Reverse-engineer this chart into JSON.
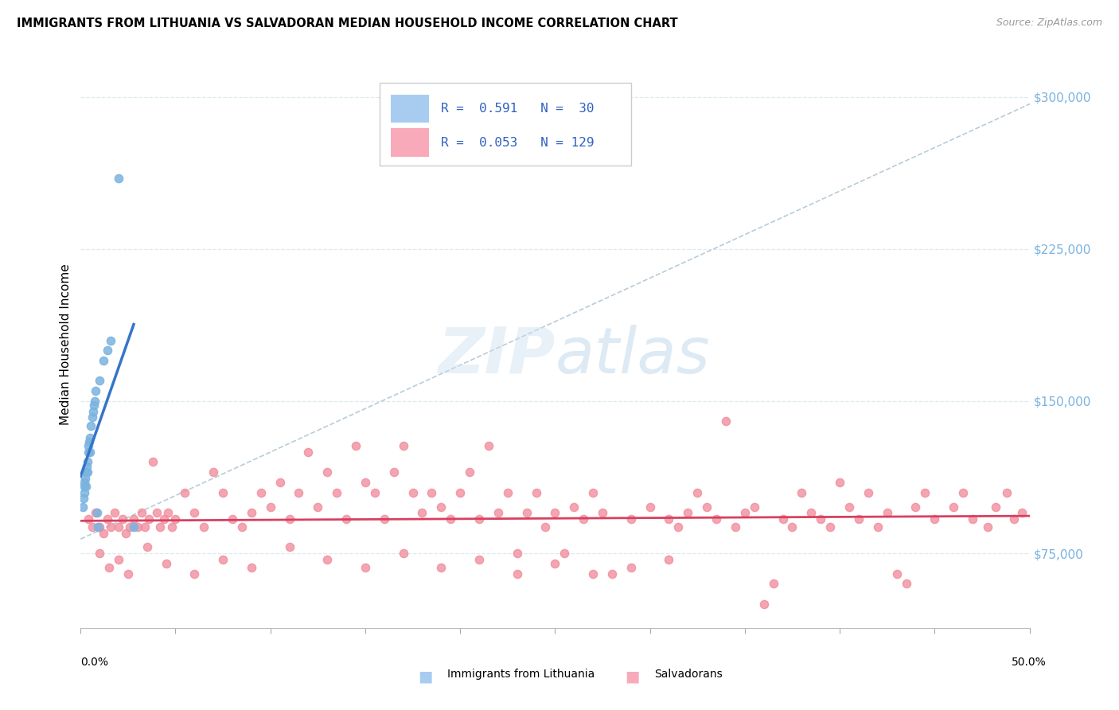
{
  "title": "IMMIGRANTS FROM LITHUANIA VS SALVADORAN MEDIAN HOUSEHOLD INCOME CORRELATION CHART",
  "source": "Source: ZipAtlas.com",
  "ylabel": "Median Household Income",
  "yticks": [
    75000,
    150000,
    225000,
    300000
  ],
  "ytick_labels": [
    "$75,000",
    "$150,000",
    "$225,000",
    "$300,000"
  ],
  "xmin": 0.0,
  "xmax": 0.5,
  "ymin": 38000,
  "ymax": 318000,
  "blue_scatter_color": "#7ab3e0",
  "pink_scatter_color": "#f08898",
  "blue_line_color": "#3575c8",
  "pink_line_color": "#d84060",
  "dashed_line_color": "#b8ccd8",
  "blue_legend_color": "#a8ccf0",
  "pink_legend_color": "#f8aabb",
  "legend_text_color": "#3060c0",
  "watermark_color": "#ddeef8",
  "grid_color": "#dce8f0",
  "r_blue": 0.591,
  "n_blue": 30,
  "r_pink": 0.053,
  "n_pink": 129,
  "lith_x": [
    0.001,
    0.0015,
    0.0018,
    0.002,
    0.0022,
    0.0025,
    0.0028,
    0.003,
    0.0032,
    0.0035,
    0.0038,
    0.004,
    0.0042,
    0.0045,
    0.0048,
    0.005,
    0.0055,
    0.006,
    0.0065,
    0.007,
    0.0075,
    0.008,
    0.0085,
    0.009,
    0.01,
    0.012,
    0.014,
    0.016,
    0.02,
    0.028
  ],
  "lith_y": [
    98000,
    102000,
    105000,
    108000,
    110000,
    112000,
    108000,
    115000,
    118000,
    120000,
    115000,
    125000,
    128000,
    130000,
    125000,
    132000,
    138000,
    142000,
    145000,
    148000,
    150000,
    155000,
    95000,
    88000,
    160000,
    170000,
    175000,
    180000,
    260000,
    88000
  ],
  "salv_x": [
    0.004,
    0.006,
    0.008,
    0.01,
    0.012,
    0.014,
    0.016,
    0.018,
    0.02,
    0.022,
    0.024,
    0.026,
    0.028,
    0.03,
    0.032,
    0.034,
    0.036,
    0.038,
    0.04,
    0.042,
    0.044,
    0.046,
    0.048,
    0.05,
    0.055,
    0.06,
    0.065,
    0.07,
    0.075,
    0.08,
    0.085,
    0.09,
    0.095,
    0.1,
    0.105,
    0.11,
    0.115,
    0.12,
    0.125,
    0.13,
    0.135,
    0.14,
    0.145,
    0.15,
    0.155,
    0.16,
    0.165,
    0.17,
    0.175,
    0.18,
    0.185,
    0.19,
    0.195,
    0.2,
    0.205,
    0.21,
    0.215,
    0.22,
    0.225,
    0.23,
    0.235,
    0.24,
    0.245,
    0.25,
    0.255,
    0.26,
    0.265,
    0.27,
    0.275,
    0.28,
    0.29,
    0.3,
    0.31,
    0.315,
    0.32,
    0.325,
    0.33,
    0.335,
    0.34,
    0.345,
    0.35,
    0.355,
    0.36,
    0.365,
    0.37,
    0.375,
    0.38,
    0.385,
    0.39,
    0.395,
    0.4,
    0.405,
    0.41,
    0.415,
    0.42,
    0.425,
    0.43,
    0.435,
    0.44,
    0.445,
    0.45,
    0.46,
    0.465,
    0.47,
    0.478,
    0.482,
    0.488,
    0.492,
    0.496,
    0.01,
    0.015,
    0.02,
    0.025,
    0.035,
    0.045,
    0.06,
    0.075,
    0.09,
    0.11,
    0.13,
    0.15,
    0.17,
    0.19,
    0.21,
    0.23,
    0.25,
    0.27,
    0.29,
    0.31
  ],
  "salv_y": [
    92000,
    88000,
    95000,
    88000,
    85000,
    92000,
    88000,
    95000,
    88000,
    92000,
    85000,
    88000,
    92000,
    88000,
    95000,
    88000,
    92000,
    120000,
    95000,
    88000,
    92000,
    95000,
    88000,
    92000,
    105000,
    95000,
    88000,
    115000,
    105000,
    92000,
    88000,
    95000,
    105000,
    98000,
    110000,
    92000,
    105000,
    125000,
    98000,
    115000,
    105000,
    92000,
    128000,
    110000,
    105000,
    92000,
    115000,
    128000,
    105000,
    95000,
    105000,
    98000,
    92000,
    105000,
    115000,
    92000,
    128000,
    95000,
    105000,
    75000,
    95000,
    105000,
    88000,
    95000,
    75000,
    98000,
    92000,
    105000,
    95000,
    65000,
    92000,
    98000,
    92000,
    88000,
    95000,
    105000,
    98000,
    92000,
    140000,
    88000,
    95000,
    98000,
    50000,
    60000,
    92000,
    88000,
    105000,
    95000,
    92000,
    88000,
    110000,
    98000,
    92000,
    105000,
    88000,
    95000,
    65000,
    60000,
    98000,
    105000,
    92000,
    98000,
    105000,
    92000,
    88000,
    98000,
    105000,
    92000,
    95000,
    75000,
    68000,
    72000,
    65000,
    78000,
    70000,
    65000,
    72000,
    68000,
    78000,
    72000,
    68000,
    75000,
    68000,
    72000,
    65000,
    70000,
    65000,
    68000,
    72000
  ]
}
